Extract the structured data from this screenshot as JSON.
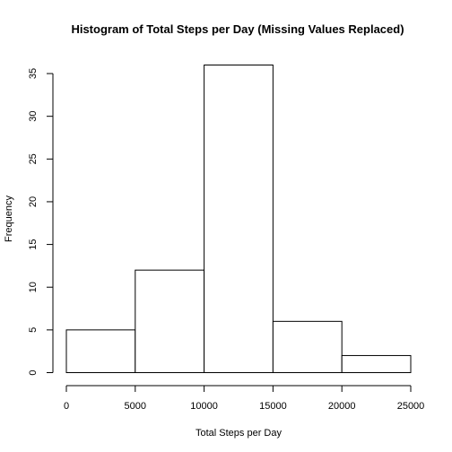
{
  "chart_data": {
    "type": "bar",
    "title": "Histogram of Total Steps per Day (Missing Values Replaced)",
    "xlabel": "Total Steps per Day",
    "ylabel": "Frequency",
    "bins": [
      {
        "from": 0,
        "to": 5000,
        "count": 5
      },
      {
        "from": 5000,
        "to": 10000,
        "count": 12
      },
      {
        "from": 10000,
        "to": 15000,
        "count": 36
      },
      {
        "from": 15000,
        "to": 20000,
        "count": 6
      },
      {
        "from": 20000,
        "to": 25000,
        "count": 2
      }
    ],
    "xlim": [
      0,
      25000
    ],
    "ylim": [
      0,
      36
    ],
    "xticks": [
      0,
      5000,
      10000,
      15000,
      20000,
      25000
    ],
    "yticks": [
      0,
      5,
      10,
      15,
      20,
      25,
      30,
      35
    ],
    "xtick_labels": [
      "0",
      "5000",
      "10000",
      "15000",
      "20000",
      "25000"
    ],
    "ytick_labels": [
      "0",
      "5",
      "10",
      "15",
      "20",
      "25",
      "30",
      "35"
    ],
    "grid": false,
    "bar_fill": "#ffffff",
    "bar_stroke": "#000000"
  }
}
